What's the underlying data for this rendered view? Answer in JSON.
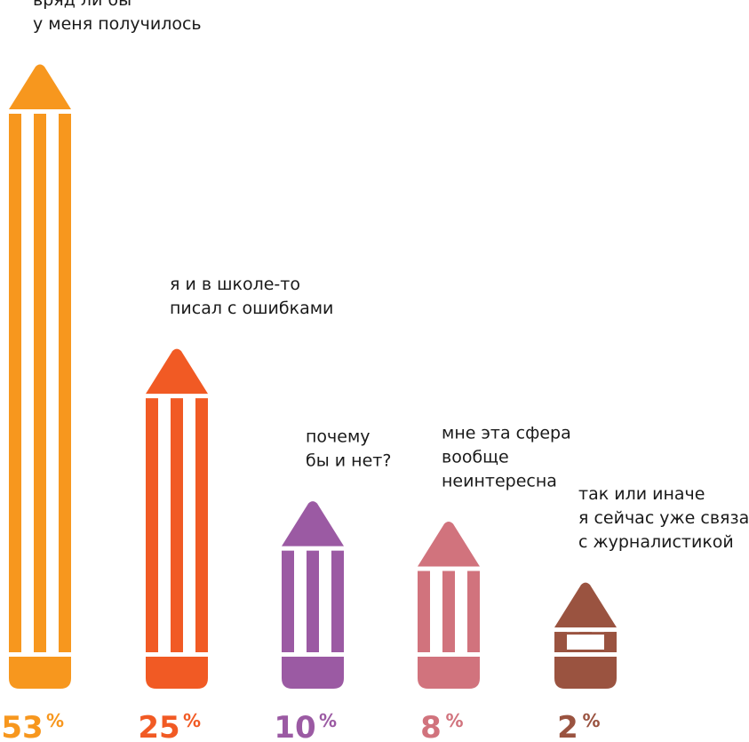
{
  "chart_data": {
    "type": "bar",
    "title": "",
    "xlabel": "",
    "ylabel": "",
    "ylim": [
      0,
      53
    ],
    "grid": false,
    "legend": "none",
    "unit": "%",
    "bars": [
      {
        "label_lines": [
          "вряд ли бы",
          "у меня получилось"
        ],
        "value": 53,
        "value_text": "53",
        "color": "#f7971e"
      },
      {
        "label_lines": [
          "я и в школе-то",
          "писал с ошибками"
        ],
        "value": 25,
        "value_text": "25",
        "color": "#f15a24"
      },
      {
        "label_lines": [
          "почему",
          "бы и нет?"
        ],
        "value": 10,
        "value_text": "10",
        "color": "#9b5aa3"
      },
      {
        "label_lines": [
          "мне эта сфера",
          "вообще",
          "неинтересна"
        ],
        "value": 8,
        "value_text": "8",
        "color": "#d1737d"
      },
      {
        "label_lines": [
          "так или иначе",
          "я сейчас уже связан",
          "с журналистикой"
        ],
        "value": 2,
        "value_text": "2",
        "color": "#9a5340"
      }
    ]
  }
}
